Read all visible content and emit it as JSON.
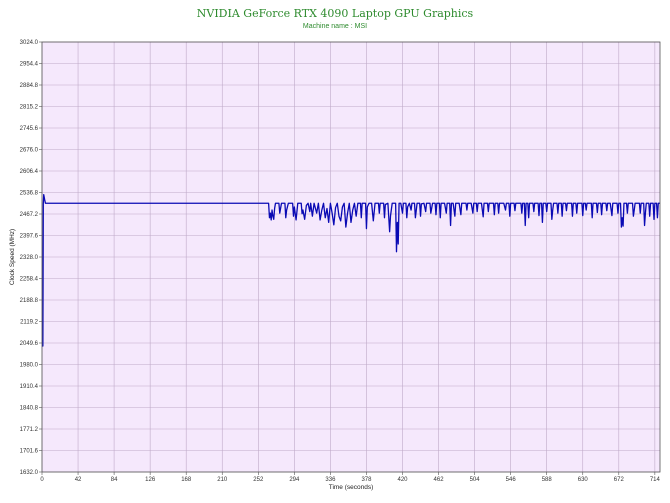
{
  "chart_data": {
    "type": "line",
    "title": "NVIDIA GeForce RTX 4090 Laptop GPU Graphics",
    "subtitle": "Machine name : MSI",
    "xlabel": "Time (seconds)",
    "ylabel": "Clock Speed (MHz)",
    "xlim": [
      0,
      720
    ],
    "ylim": [
      1632.0,
      3024.0
    ],
    "x_ticks": [
      0,
      42,
      84,
      126,
      168,
      210,
      252,
      294,
      336,
      378,
      420,
      462,
      504,
      546,
      588,
      630,
      672,
      714
    ],
    "y_ticks": [
      "1632.0",
      "1701.6",
      "1771.2",
      "1840.8",
      "1910.4",
      "1980.0",
      "2049.6",
      "2119.2",
      "2188.8",
      "2258.4",
      "2328.0",
      "2397.6",
      "2467.2",
      "2536.8",
      "2606.4",
      "2676.0",
      "2745.6",
      "2815.2",
      "2884.8",
      "2954.4",
      "3024.0"
    ],
    "grid": true,
    "background_color": "#f5e8fc",
    "grid_color": "#bfa9c8",
    "series": [
      {
        "color": "#0a0ab4",
        "points": [
          [
            0,
            2040
          ],
          [
            1,
            2040
          ],
          [
            1.5,
            2500
          ],
          [
            2,
            2530
          ],
          [
            3,
            2515
          ],
          [
            4,
            2502
          ],
          [
            264,
            2502
          ],
          [
            265,
            2455
          ],
          [
            266,
            2470
          ],
          [
            267,
            2448
          ],
          [
            268,
            2480
          ],
          [
            269,
            2460
          ],
          [
            270,
            2450
          ],
          [
            271,
            2485
          ],
          [
            272,
            2502
          ],
          [
            276,
            2502
          ],
          [
            277,
            2470
          ],
          [
            279,
            2502
          ],
          [
            283,
            2502
          ],
          [
            284,
            2455
          ],
          [
            285,
            2480
          ],
          [
            287,
            2502
          ],
          [
            292,
            2502
          ],
          [
            293,
            2460
          ],
          [
            294,
            2490
          ],
          [
            296,
            2448
          ],
          [
            298,
            2502
          ],
          [
            302,
            2502
          ],
          [
            303,
            2468
          ],
          [
            304,
            2480
          ],
          [
            306,
            2450
          ],
          [
            308,
            2495
          ],
          [
            310,
            2502
          ],
          [
            312,
            2475
          ],
          [
            313,
            2502
          ],
          [
            315,
            2460
          ],
          [
            317,
            2502
          ],
          [
            320,
            2470
          ],
          [
            322,
            2502
          ],
          [
            324,
            2448
          ],
          [
            326,
            2480
          ],
          [
            328,
            2502
          ],
          [
            330,
            2455
          ],
          [
            332,
            2485
          ],
          [
            334,
            2440
          ],
          [
            336,
            2502
          ],
          [
            338,
            2470
          ],
          [
            340,
            2432
          ],
          [
            342,
            2488
          ],
          [
            344,
            2502
          ],
          [
            346,
            2460
          ],
          [
            348,
            2445
          ],
          [
            350,
            2490
          ],
          [
            352,
            2502
          ],
          [
            354,
            2425
          ],
          [
            356,
            2470
          ],
          [
            358,
            2502
          ],
          [
            360,
            2440
          ],
          [
            362,
            2480
          ],
          [
            364,
            2502
          ],
          [
            366,
            2460
          ],
          [
            368,
            2502
          ],
          [
            371,
            2502
          ],
          [
            372,
            2455
          ],
          [
            373,
            2502
          ],
          [
            377,
            2502
          ],
          [
            378,
            2420
          ],
          [
            379,
            2490
          ],
          [
            381,
            2502
          ],
          [
            384,
            2502
          ],
          [
            386,
            2445
          ],
          [
            388,
            2502
          ],
          [
            392,
            2502
          ],
          [
            393,
            2470
          ],
          [
            394,
            2502
          ],
          [
            398,
            2502
          ],
          [
            399,
            2455
          ],
          [
            400,
            2498
          ],
          [
            403,
            2502
          ],
          [
            405,
            2410
          ],
          [
            406,
            2460
          ],
          [
            408,
            2502
          ],
          [
            412,
            2502
          ],
          [
            413,
            2345
          ],
          [
            414,
            2440
          ],
          [
            415,
            2370
          ],
          [
            416,
            2502
          ],
          [
            418,
            2502
          ],
          [
            420,
            2470
          ],
          [
            421,
            2502
          ],
          [
            424,
            2502
          ],
          [
            425,
            2455
          ],
          [
            426,
            2490
          ],
          [
            428,
            2502
          ],
          [
            430,
            2480
          ],
          [
            431,
            2502
          ],
          [
            434,
            2502
          ],
          [
            435,
            2455
          ],
          [
            437,
            2502
          ],
          [
            440,
            2502
          ],
          [
            441,
            2460
          ],
          [
            442,
            2500
          ],
          [
            445,
            2502
          ],
          [
            447,
            2475
          ],
          [
            448,
            2502
          ],
          [
            452,
            2502
          ],
          [
            453,
            2470
          ],
          [
            455,
            2502
          ],
          [
            458,
            2502
          ],
          [
            459,
            2465
          ],
          [
            460,
            2502
          ],
          [
            463,
            2502
          ],
          [
            464,
            2455
          ],
          [
            465,
            2502
          ],
          [
            469,
            2502
          ],
          [
            471,
            2470
          ],
          [
            472,
            2502
          ],
          [
            475,
            2502
          ],
          [
            476,
            2430
          ],
          [
            477,
            2502
          ],
          [
            479,
            2502
          ],
          [
            481,
            2460
          ],
          [
            482,
            2502
          ],
          [
            486,
            2502
          ],
          [
            488,
            2465
          ],
          [
            489,
            2502
          ],
          [
            494,
            2502
          ],
          [
            495,
            2480
          ],
          [
            496,
            2502
          ],
          [
            500,
            2502
          ],
          [
            502,
            2470
          ],
          [
            503,
            2502
          ],
          [
            506,
            2502
          ],
          [
            507,
            2475
          ],
          [
            508,
            2502
          ],
          [
            512,
            2502
          ],
          [
            514,
            2458
          ],
          [
            515,
            2502
          ],
          [
            519,
            2502
          ],
          [
            520,
            2475
          ],
          [
            521,
            2502
          ],
          [
            526,
            2502
          ],
          [
            527,
            2465
          ],
          [
            528,
            2502
          ],
          [
            531,
            2502
          ],
          [
            532,
            2470
          ],
          [
            533,
            2502
          ],
          [
            538,
            2502
          ],
          [
            540,
            2480
          ],
          [
            541,
            2502
          ],
          [
            544,
            2502
          ],
          [
            545,
            2460
          ],
          [
            546,
            2502
          ],
          [
            550,
            2502
          ],
          [
            551,
            2478
          ],
          [
            552,
            2502
          ],
          [
            558,
            2502
          ],
          [
            559,
            2470
          ],
          [
            560,
            2502
          ],
          [
            562,
            2502
          ],
          [
            563,
            2430
          ],
          [
            564,
            2502
          ],
          [
            566,
            2502
          ],
          [
            567,
            2455
          ],
          [
            568,
            2502
          ],
          [
            572,
            2502
          ],
          [
            573,
            2475
          ],
          [
            574,
            2502
          ],
          [
            578,
            2502
          ],
          [
            579,
            2462
          ],
          [
            580,
            2502
          ],
          [
            582,
            2502
          ],
          [
            583,
            2440
          ],
          [
            584,
            2502
          ],
          [
            587,
            2502
          ],
          [
            588,
            2475
          ],
          [
            589,
            2502
          ],
          [
            593,
            2502
          ],
          [
            594,
            2450
          ],
          [
            595,
            2480
          ],
          [
            596,
            2502
          ],
          [
            600,
            2502
          ],
          [
            601,
            2470
          ],
          [
            602,
            2502
          ],
          [
            605,
            2502
          ],
          [
            606,
            2460
          ],
          [
            607,
            2502
          ],
          [
            610,
            2502
          ],
          [
            611,
            2478
          ],
          [
            612,
            2502
          ],
          [
            617,
            2502
          ],
          [
            618,
            2460
          ],
          [
            619,
            2502
          ],
          [
            622,
            2502
          ],
          [
            623,
            2470
          ],
          [
            624,
            2502
          ],
          [
            629,
            2502
          ],
          [
            630,
            2462
          ],
          [
            631,
            2502
          ],
          [
            633,
            2502
          ],
          [
            634,
            2480
          ],
          [
            635,
            2502
          ],
          [
            640,
            2502
          ],
          [
            641,
            2455
          ],
          [
            642,
            2502
          ],
          [
            646,
            2502
          ],
          [
            647,
            2472
          ],
          [
            648,
            2502
          ],
          [
            651,
            2502
          ],
          [
            652,
            2465
          ],
          [
            653,
            2502
          ],
          [
            657,
            2502
          ],
          [
            658,
            2478
          ],
          [
            659,
            2502
          ],
          [
            662,
            2502
          ],
          [
            664,
            2462
          ],
          [
            665,
            2502
          ],
          [
            670,
            2502
          ],
          [
            671,
            2470
          ],
          [
            672,
            2502
          ],
          [
            674,
            2502
          ],
          [
            675,
            2425
          ],
          [
            676,
            2455
          ],
          [
            677,
            2428
          ],
          [
            678,
            2502
          ],
          [
            681,
            2502
          ],
          [
            682,
            2470
          ],
          [
            683,
            2502
          ],
          [
            688,
            2502
          ],
          [
            689,
            2460
          ],
          [
            690,
            2480
          ],
          [
            691,
            2502
          ],
          [
            696,
            2502
          ],
          [
            697,
            2470
          ],
          [
            698,
            2502
          ],
          [
            701,
            2502
          ],
          [
            702,
            2430
          ],
          [
            703,
            2470
          ],
          [
            704,
            2502
          ],
          [
            707,
            2502
          ],
          [
            708,
            2460
          ],
          [
            709,
            2502
          ],
          [
            712,
            2502
          ],
          [
            713,
            2450
          ],
          [
            714,
            2502
          ],
          [
            716,
            2502
          ],
          [
            717,
            2455
          ],
          [
            718,
            2502
          ],
          [
            720,
            2502
          ]
        ]
      }
    ]
  }
}
